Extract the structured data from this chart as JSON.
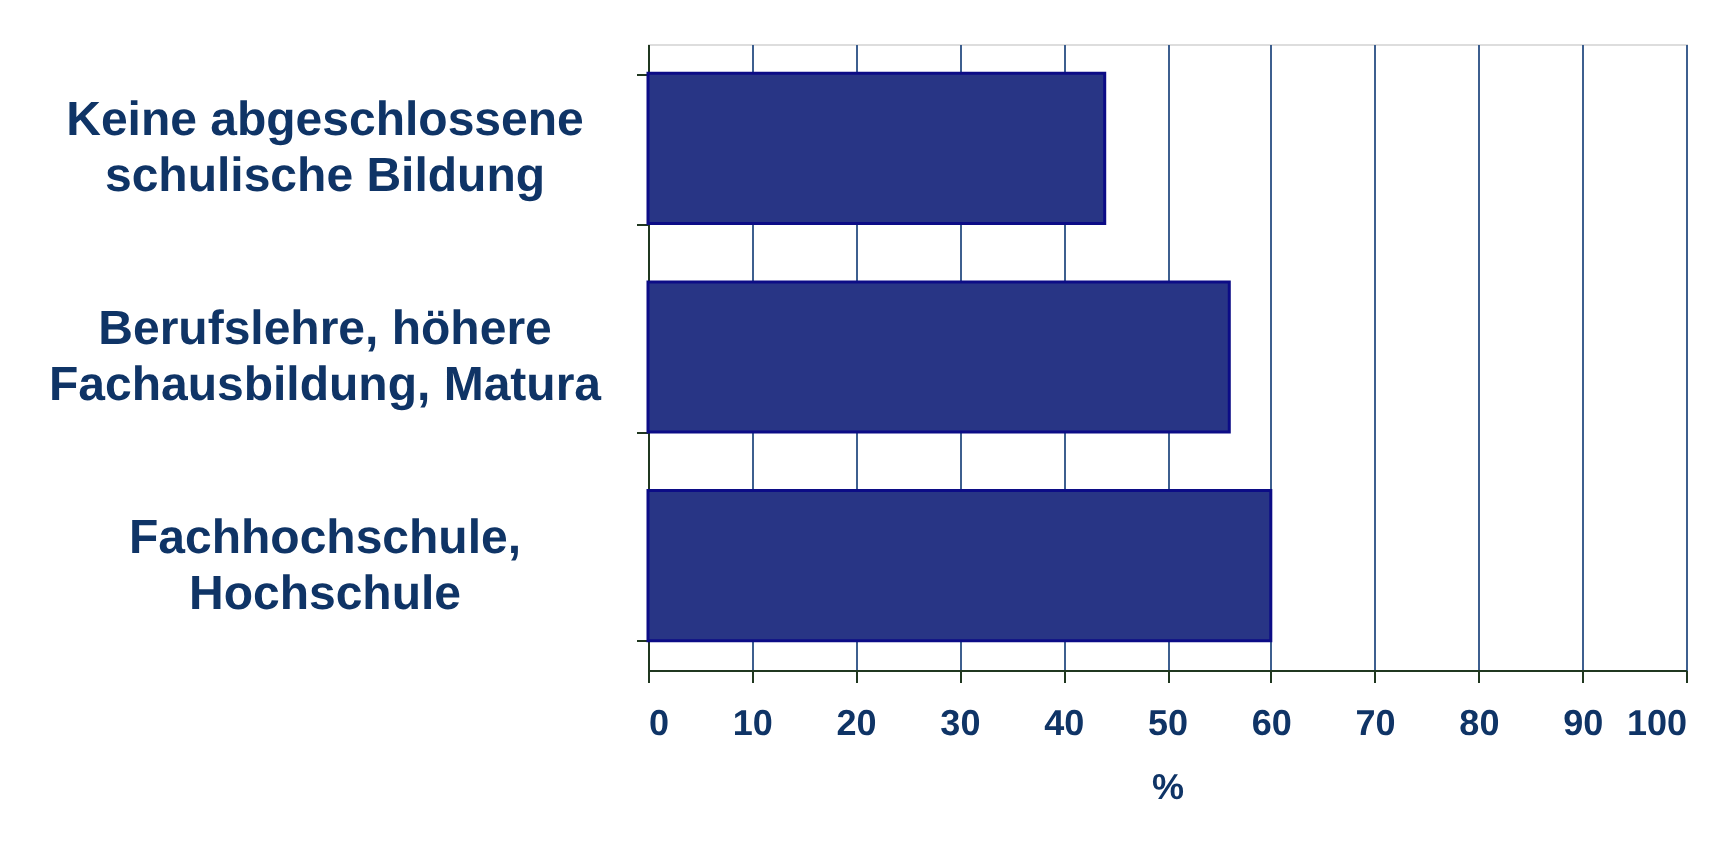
{
  "chart_data": {
    "type": "bar",
    "orientation": "horizontal",
    "categories": [
      "Keine abgeschlossene\nschulische Bildung",
      "Berufslehre, höhere\nFachausbildung, Matura",
      "Fachhochschule,\nHochschule"
    ],
    "values": [
      44,
      56,
      60
    ],
    "color": "#283585",
    "xlabel": "%",
    "xlim": [
      0,
      100
    ],
    "xticks": [
      0,
      10,
      20,
      30,
      40,
      50,
      60,
      70,
      80,
      90,
      100
    ],
    "grid": "x"
  }
}
